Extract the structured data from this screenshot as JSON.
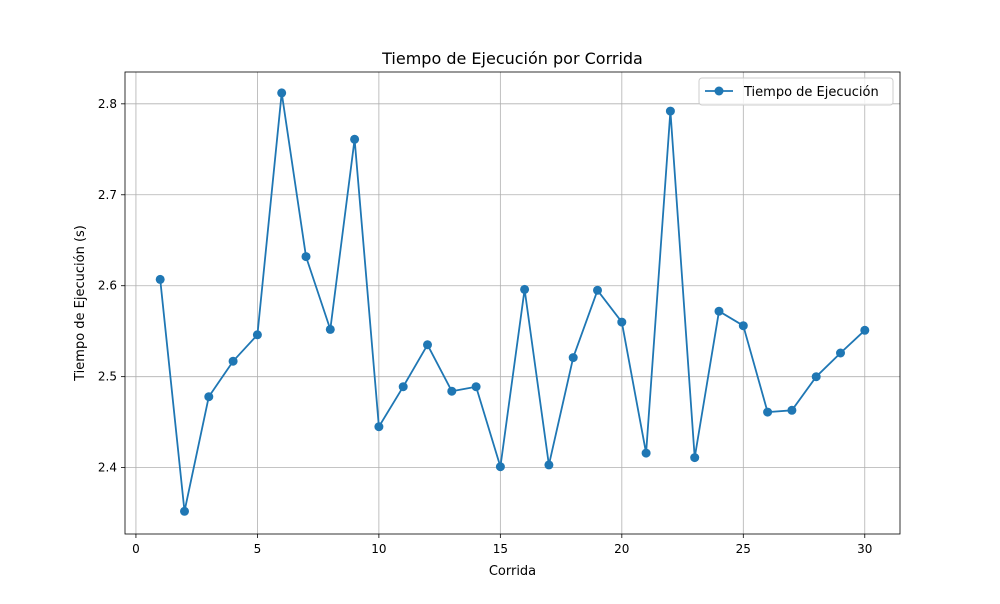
{
  "chart_data": {
    "type": "line",
    "title": "Tiempo de Ejecución por Corrida",
    "xlabel": "Corrida",
    "ylabel": "Tiempo de Ejecución (s)",
    "xlim": [
      -0.45,
      31.45
    ],
    "ylim": [
      2.327,
      2.835
    ],
    "xticks": [
      0,
      5,
      10,
      15,
      20,
      25,
      30
    ],
    "yticks": [
      2.4,
      2.5,
      2.6,
      2.7,
      2.8
    ],
    "xtick_labels": [
      "0",
      "5",
      "10",
      "15",
      "20",
      "25",
      "30"
    ],
    "ytick_labels": [
      "2.4",
      "2.5",
      "2.6",
      "2.7",
      "2.8"
    ],
    "grid": true,
    "legend_position": "top-right",
    "series": [
      {
        "name": "Tiempo de Ejecución",
        "color": "#1f77b4",
        "marker": "circle",
        "x": [
          1,
          2,
          3,
          4,
          5,
          6,
          7,
          8,
          9,
          10,
          11,
          12,
          13,
          14,
          15,
          16,
          17,
          18,
          19,
          20,
          21,
          22,
          23,
          24,
          25,
          26,
          27,
          28,
          29,
          30
        ],
        "y": [
          2.607,
          2.352,
          2.478,
          2.517,
          2.546,
          2.812,
          2.632,
          2.552,
          2.761,
          2.445,
          2.489,
          2.535,
          2.484,
          2.489,
          2.401,
          2.596,
          2.403,
          2.521,
          2.595,
          2.56,
          2.416,
          2.792,
          2.411,
          2.572,
          2.556,
          2.461,
          2.463,
          2.5,
          2.526,
          2.551
        ]
      }
    ]
  }
}
